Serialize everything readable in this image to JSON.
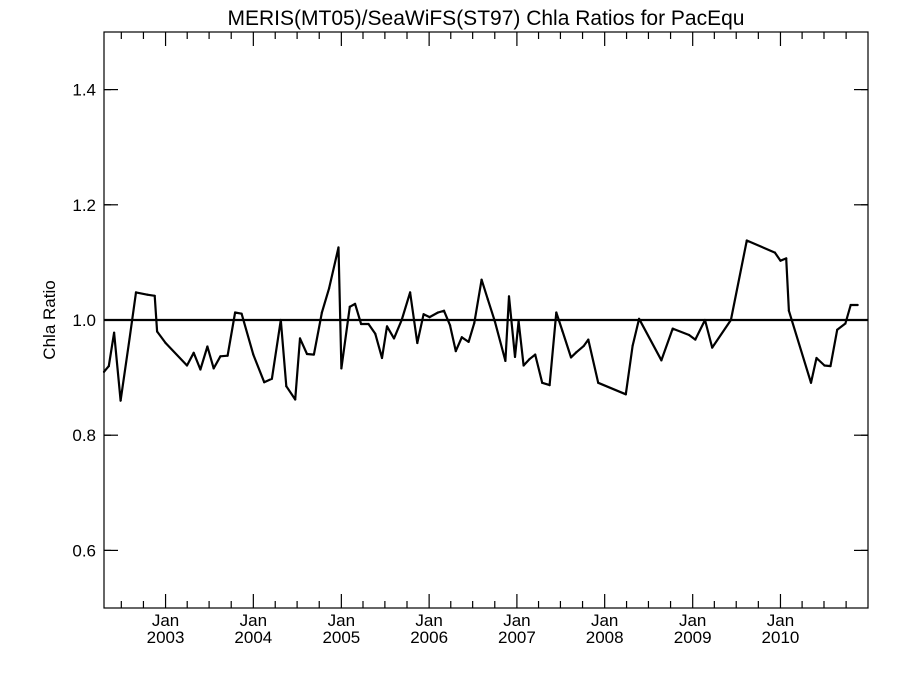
{
  "chart_data": {
    "type": "line",
    "title": "MERIS(MT05)/SeaWiFS(ST97)  Chla Ratios for PacEqu",
    "xlabel": "",
    "ylabel": "Chla Ratio",
    "xlim": [
      "2002-04-20",
      "2010-12-31"
    ],
    "ylim": [
      0.5,
      1.5
    ],
    "y_ticks": [
      0.6,
      0.8,
      1.0,
      1.2,
      1.4
    ],
    "y_tick_labels": [
      "0.6",
      "0.8",
      "1.0",
      "1.2",
      "1.4"
    ],
    "x_ticks": [
      {
        "date": "2003-01-01",
        "label1": "Jan",
        "label2": "2003"
      },
      {
        "date": "2004-01-01",
        "label1": "Jan",
        "label2": "2004"
      },
      {
        "date": "2005-01-01",
        "label1": "Jan",
        "label2": "2005"
      },
      {
        "date": "2006-01-01",
        "label1": "Jan",
        "label2": "2006"
      },
      {
        "date": "2007-01-01",
        "label1": "Jan",
        "label2": "2007"
      },
      {
        "date": "2008-01-01",
        "label1": "Jan",
        "label2": "2008"
      },
      {
        "date": "2009-01-01",
        "label1": "Jan",
        "label2": "2009"
      },
      {
        "date": "2010-01-01",
        "label1": "Jan",
        "label2": "2010"
      }
    ],
    "reference_line": 1.0,
    "grid": false,
    "series": [
      {
        "x": [
          "2002-04-20",
          "2002-05-10",
          "2002-06-01",
          "2002-06-28",
          "2002-08-04",
          "2002-08-31",
          "2002-10-17",
          "2002-11-17",
          "2002-11-27",
          "2003-01-01",
          "2003-03-31",
          "2003-04-28",
          "2003-05-26",
          "2003-06-24",
          "2003-07-20",
          "2003-08-17",
          "2003-09-16",
          "2003-10-17",
          "2003-11-13",
          "2004-01-01",
          "2004-02-15",
          "2004-03-18",
          "2004-04-24",
          "2004-05-17",
          "2004-06-23",
          "2004-07-13",
          "2004-08-11",
          "2004-09-09",
          "2004-10-12",
          "2004-11-11",
          "2004-12-20",
          "2005-01-01",
          "2005-02-05",
          "2005-02-27",
          "2005-03-24",
          "2005-04-24",
          "2005-05-22",
          "2005-06-19",
          "2005-07-10",
          "2005-08-08",
          "2005-09-09",
          "2005-10-14",
          "2005-11-13",
          "2005-12-09",
          "2006-01-03",
          "2006-02-07",
          "2006-03-04",
          "2006-03-29",
          "2006-04-22",
          "2006-05-17",
          "2006-06-14",
          "2006-07-08",
          "2006-08-07",
          "2006-09-02",
          "2006-10-01",
          "2006-11-14",
          "2006-11-29",
          "2006-12-24",
          "2007-01-08",
          "2007-01-29",
          "2007-02-22",
          "2007-03-18",
          "2007-04-16",
          "2007-05-17",
          "2007-06-14",
          "2007-07-09",
          "2007-08-14",
          "2007-09-05",
          "2007-10-06",
          "2007-10-25",
          "2007-12-05",
          "2008-03-29",
          "2008-04-26",
          "2008-05-23",
          "2008-08-24",
          "2008-10-10",
          "2008-12-17",
          "2009-01-12",
          "2009-02-21",
          "2009-03-23",
          "2009-06-09",
          "2009-08-14",
          "2009-12-09",
          "2010-01-01",
          "2010-01-25",
          "2010-02-05",
          "2010-05-08",
          "2010-05-31",
          "2010-07-03",
          "2010-07-28",
          "2010-08-25",
          "2010-09-28",
          "2010-10-20",
          "2010-11-18"
        ],
        "y": [
          0.91,
          0.92,
          0.978,
          0.86,
          0.967,
          1.048,
          1.044,
          1.042,
          0.98,
          0.96,
          0.921,
          0.943,
          0.914,
          0.954,
          0.916,
          0.937,
          0.938,
          1.013,
          1.011,
          0.94,
          0.892,
          0.898,
          1.0,
          0.885,
          0.862,
          0.968,
          0.941,
          0.94,
          1.013,
          1.055,
          1.126,
          0.916,
          1.023,
          1.028,
          0.993,
          0.993,
          0.976,
          0.934,
          0.989,
          0.968,
          1.0,
          1.048,
          0.96,
          1.01,
          1.005,
          1.013,
          1.016,
          0.991,
          0.946,
          0.97,
          0.962,
          0.995,
          1.07,
          1.036,
          0.998,
          0.929,
          1.041,
          0.936,
          0.998,
          0.921,
          0.932,
          0.94,
          0.891,
          0.887,
          1.013,
          0.981,
          0.935,
          0.944,
          0.955,
          0.966,
          0.891,
          0.871,
          0.955,
          1.002,
          0.93,
          0.985,
          0.974,
          0.966,
          1.0,
          0.952,
          1.0,
          1.138,
          1.117,
          1.103,
          1.107,
          1.016,
          0.891,
          0.934,
          0.921,
          0.92,
          0.983,
          0.994,
          1.026,
          1.026
        ]
      }
    ],
    "colors": {
      "line": "#000000",
      "axes": "#000000",
      "background": "#ffffff"
    }
  }
}
